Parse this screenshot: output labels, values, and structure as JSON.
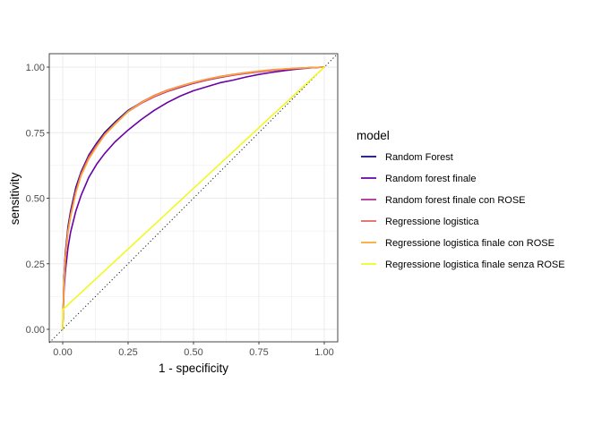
{
  "chart_data": {
    "type": "line",
    "title": "",
    "xlabel": "1 - specificity",
    "ylabel": "sensitivity",
    "xlim": [
      0,
      1
    ],
    "ylim": [
      0,
      1
    ],
    "x_ticks": [
      "0.00",
      "0.25",
      "0.50",
      "0.75",
      "1.00"
    ],
    "y_ticks": [
      "0.00",
      "0.25",
      "0.50",
      "0.75",
      "1.00"
    ],
    "grid": true,
    "reference_line": {
      "style": "dotted",
      "from": [
        0,
        0
      ],
      "to": [
        1,
        1
      ]
    },
    "legend": {
      "title": "model",
      "position": "right"
    },
    "series": [
      {
        "name": "Random Forest",
        "color": "#0D0887",
        "x": [
          0,
          0.005,
          0.01,
          0.02,
          0.03,
          0.05,
          0.07,
          0.1,
          0.13,
          0.16,
          0.2,
          0.25,
          0.3,
          0.35,
          0.4,
          0.45,
          0.5,
          0.55,
          0.6,
          0.65,
          0.7,
          0.75,
          0.8,
          0.85,
          0.9,
          0.95,
          1.0
        ],
        "y": [
          0,
          0.2,
          0.29,
          0.39,
          0.45,
          0.54,
          0.6,
          0.665,
          0.71,
          0.75,
          0.79,
          0.835,
          0.865,
          0.89,
          0.91,
          0.925,
          0.94,
          0.952,
          0.962,
          0.97,
          0.977,
          0.983,
          0.988,
          0.992,
          0.995,
          0.998,
          1.0
        ]
      },
      {
        "name": "Random forest finale",
        "color": "#6A00A8",
        "x": [
          0,
          0.005,
          0.01,
          0.02,
          0.03,
          0.05,
          0.07,
          0.1,
          0.13,
          0.16,
          0.2,
          0.25,
          0.3,
          0.35,
          0.4,
          0.45,
          0.5,
          0.55,
          0.6,
          0.65,
          0.7,
          0.75,
          0.8,
          0.85,
          0.9,
          0.95,
          1.0
        ],
        "y": [
          0,
          0.15,
          0.22,
          0.31,
          0.37,
          0.45,
          0.51,
          0.58,
          0.63,
          0.67,
          0.715,
          0.76,
          0.8,
          0.835,
          0.865,
          0.89,
          0.91,
          0.925,
          0.94,
          0.95,
          0.962,
          0.972,
          0.98,
          0.987,
          0.993,
          0.997,
          1.0
        ]
      },
      {
        "name": "Random forest finale con ROSE",
        "color": "#B12A90",
        "x": [
          0,
          0.005,
          0.01,
          0.02,
          0.03,
          0.05,
          0.07,
          0.1,
          0.13,
          0.16,
          0.2,
          0.25,
          0.3,
          0.35,
          0.4,
          0.45,
          0.5,
          0.55,
          0.6,
          0.65,
          0.7,
          0.75,
          0.8,
          0.85,
          0.9,
          0.95,
          1.0
        ],
        "y": [
          0,
          0.19,
          0.28,
          0.38,
          0.44,
          0.53,
          0.595,
          0.66,
          0.705,
          0.745,
          0.785,
          0.83,
          0.862,
          0.887,
          0.907,
          0.923,
          0.938,
          0.95,
          0.96,
          0.969,
          0.976,
          0.982,
          0.987,
          0.991,
          0.995,
          0.998,
          1.0
        ]
      },
      {
        "name": "Regressione logistica",
        "color": "#E16462",
        "x": [
          0,
          0.005,
          0.01,
          0.02,
          0.03,
          0.05,
          0.07,
          0.1,
          0.13,
          0.16,
          0.2,
          0.25,
          0.3,
          0.35,
          0.4,
          0.45,
          0.5,
          0.55,
          0.6,
          0.65,
          0.7,
          0.75,
          0.8,
          0.85,
          0.9,
          0.95,
          1.0
        ],
        "y": [
          0,
          0.18,
          0.27,
          0.37,
          0.43,
          0.52,
          0.59,
          0.655,
          0.7,
          0.742,
          0.785,
          0.832,
          0.866,
          0.892,
          0.912,
          0.928,
          0.942,
          0.954,
          0.964,
          0.972,
          0.979,
          0.985,
          0.99,
          0.993,
          0.996,
          0.998,
          1.0
        ]
      },
      {
        "name": "Regressione logistica finale con ROSE",
        "color": "#FCA636",
        "x": [
          0,
          0.005,
          0.01,
          0.02,
          0.03,
          0.05,
          0.07,
          0.1,
          0.13,
          0.16,
          0.2,
          0.25,
          0.3,
          0.35,
          0.4,
          0.45,
          0.5,
          0.55,
          0.6,
          0.65,
          0.7,
          0.75,
          0.8,
          0.85,
          0.9,
          0.95,
          1.0
        ],
        "y": [
          0,
          0.18,
          0.27,
          0.37,
          0.43,
          0.52,
          0.585,
          0.65,
          0.697,
          0.74,
          0.782,
          0.83,
          0.864,
          0.89,
          0.91,
          0.927,
          0.941,
          0.953,
          0.963,
          0.971,
          0.978,
          0.984,
          0.989,
          0.993,
          0.996,
          0.998,
          1.0
        ]
      },
      {
        "name": "Regressione logistica finale senza ROSE",
        "color": "#F0F921",
        "x": [
          0,
          0,
          1.0
        ],
        "y": [
          0,
          0.075,
          1.0
        ]
      }
    ]
  }
}
